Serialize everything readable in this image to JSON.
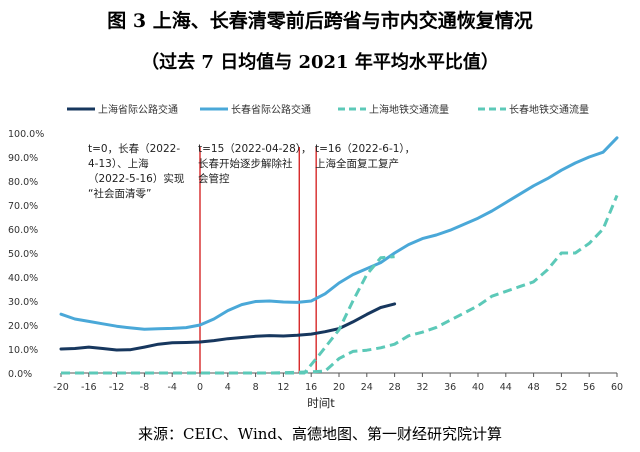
{
  "header": {
    "title": "图 3 上海、长春清零前后跨省与市内交通恢复情况",
    "subtitle": "（过去 7 日均值与 2021 年平均水平比值）"
  },
  "footer": {
    "source": "来源：CEIC、Wind、高德地图、第一财经研究院计算"
  },
  "chart_data": {
    "type": "line",
    "xlabel": "时间t",
    "ylabel": "",
    "xlim": [
      -20,
      60
    ],
    "ylim": [
      0,
      100
    ],
    "x_ticks": [
      -20,
      -16,
      -12,
      -8,
      -4,
      0,
      4,
      8,
      12,
      16,
      20,
      24,
      28,
      32,
      36,
      40,
      44,
      48,
      52,
      56,
      60
    ],
    "y_ticks": [
      "0.0%",
      "10.0%",
      "20.0%",
      "30.0%",
      "40.0%",
      "50.0%",
      "60.0%",
      "70.0%",
      "80.0%",
      "90.0%",
      "100.0%"
    ],
    "y_tick_values": [
      0,
      10,
      20,
      30,
      40,
      50,
      60,
      70,
      80,
      90,
      100
    ],
    "grid": false,
    "legend_position": "top",
    "series": [
      {
        "name": "上海省际公路交通",
        "color": "#17375e",
        "dash": "solid",
        "x": [
          -20,
          -18,
          -16,
          -14,
          -12,
          -10,
          -8,
          -6,
          -4,
          -2,
          0,
          2,
          4,
          6,
          8,
          10,
          12,
          14,
          16,
          18,
          20,
          22,
          24,
          26,
          28
        ],
        "y": [
          10,
          10.2,
          10.8,
          10.2,
          9.6,
          9.7,
          10.8,
          12,
          12.6,
          12.7,
          12.9,
          13.5,
          14.3,
          14.8,
          15.3,
          15.6,
          15.4,
          15.7,
          16.2,
          17.2,
          18.5,
          21.3,
          24.4,
          27.3,
          28.8
        ]
      },
      {
        "name": "长春省际公路交通",
        "color": "#4aa8d8",
        "dash": "solid",
        "x": [
          -20,
          -18,
          -16,
          -14,
          -12,
          -10,
          -8,
          -6,
          -4,
          -2,
          0,
          2,
          4,
          6,
          8,
          10,
          12,
          14,
          16,
          18,
          20,
          22,
          24,
          26,
          28,
          30,
          32,
          34,
          36,
          38,
          40,
          42,
          44,
          46,
          48,
          50,
          52,
          54,
          56,
          58,
          60
        ],
        "y": [
          24.5,
          22.5,
          21.5,
          20.5,
          19.5,
          18.8,
          18.2,
          18.4,
          18.6,
          18.9,
          20,
          22.5,
          26,
          28.5,
          29.8,
          30,
          29.6,
          29.4,
          30,
          33,
          37.5,
          41,
          43.5,
          46,
          50,
          53.5,
          56,
          57.5,
          59.5,
          62,
          64.5,
          67.5,
          71,
          74.5,
          78,
          81,
          84.5,
          87.5,
          90,
          92,
          98
        ]
      },
      {
        "name": "上海地铁交通流量",
        "color": "#5cc9b8",
        "dash": "dashed",
        "x": [
          -20,
          -10,
          0,
          10,
          15,
          17,
          20,
          22,
          24,
          26,
          28
        ],
        "y": [
          0,
          0,
          0,
          0,
          0,
          7,
          18,
          30,
          41,
          48,
          48.5
        ]
      },
      {
        "name": "长春地铁交通流量",
        "color": "#5cc9b8",
        "dash": "dashed",
        "x": [
          -20,
          -10,
          0,
          10,
          14,
          16,
          18,
          20,
          22,
          24,
          26,
          28,
          30,
          32,
          34,
          36,
          38,
          40,
          42,
          44,
          46,
          48,
          50,
          52,
          54,
          56,
          58,
          60
        ],
        "y": [
          0,
          0,
          0,
          0,
          0.3,
          0.5,
          0.8,
          6,
          9,
          9.5,
          10.5,
          12,
          15.5,
          17,
          19,
          22,
          25,
          28,
          32,
          34,
          36,
          38,
          43,
          50,
          50,
          54,
          60,
          74
        ]
      }
    ],
    "annotations": [
      {
        "x": 0,
        "text": "t=0，长春（2022-4-13）、上海（2022-5-16）实现“社会面清零”"
      },
      {
        "x": 15,
        "text": "t=15（2022-04-28），长春开始逐步解除社会管控"
      },
      {
        "x": 16,
        "text": "t=16（2022-6-1），上海全面复工复产"
      }
    ]
  }
}
